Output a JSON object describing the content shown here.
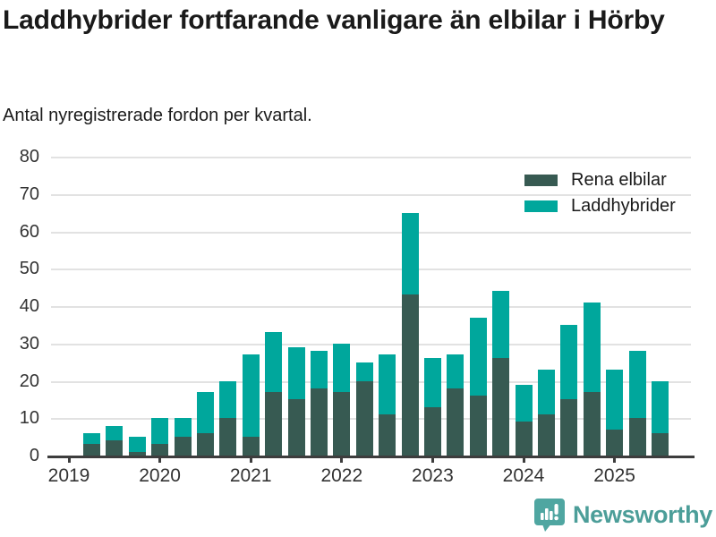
{
  "header": {
    "title": "Laddhybrider fortfarande vanligare än elbilar i Hörby",
    "subtitle": "Antal nyregistrerade fordon per kvartal."
  },
  "legend": [
    {
      "label": "Rena elbilar",
      "color": "#375a52"
    },
    {
      "label": "Laddhybrider",
      "color": "#00a79c"
    }
  ],
  "footer": {
    "brand": "Newsworthy",
    "brand_color": "#4c9e99",
    "icon": "newsworthy-chart-bubble-icon",
    "icon_color": "#4fa6a1"
  },
  "chart_data": {
    "type": "bar",
    "stacked": true,
    "title": "Laddhybrider fortfarande vanligare än elbilar i Hörby",
    "subtitle": "Antal nyregistrerade fordon per kvartal.",
    "grid": true,
    "legend_position": "top-right",
    "ylim": [
      0,
      80
    ],
    "yticks": [
      0,
      10,
      20,
      30,
      40,
      50,
      60,
      70,
      80
    ],
    "x_tick_labels": [
      "2019",
      "2020",
      "2021",
      "2022",
      "2023",
      "2024",
      "2025"
    ],
    "first_bar_quarter_offset": 1,
    "quarters": [
      "2019-K2",
      "2019-K3",
      "2019-K4",
      "2020-K1",
      "2020-K2",
      "2020-K3",
      "2020-K4",
      "2021-K1",
      "2021-K2",
      "2021-K3",
      "2021-K4",
      "2022-K1",
      "2022-K2",
      "2022-K3",
      "2022-K4",
      "2023-K1",
      "2023-K2",
      "2023-K3",
      "2023-K4",
      "2024-K1",
      "2024-K2",
      "2024-K3",
      "2024-K4",
      "2025-K1",
      "2025-K2",
      "2025-K3"
    ],
    "series": [
      {
        "name": "Rena elbilar",
        "color": "#375a52",
        "values": [
          3,
          4,
          1,
          3,
          5,
          6,
          10,
          5,
          17,
          15,
          18,
          17,
          20,
          11,
          43,
          13,
          18,
          16,
          26,
          9,
          11,
          15,
          17,
          7,
          10,
          6
        ]
      },
      {
        "name": "Laddhybrider",
        "color": "#00a79c",
        "values": [
          3,
          4,
          4,
          7,
          5,
          11,
          10,
          22,
          16,
          14,
          10,
          13,
          5,
          16,
          22,
          13,
          9,
          21,
          18,
          10,
          12,
          20,
          24,
          16,
          18,
          14
        ]
      }
    ],
    "totals": [
      6,
      8,
      5,
      10,
      10,
      17,
      20,
      27,
      33,
      29,
      28,
      30,
      25,
      27,
      65,
      26,
      27,
      37,
      44,
      19,
      23,
      35,
      41,
      23,
      28,
      20
    ]
  }
}
